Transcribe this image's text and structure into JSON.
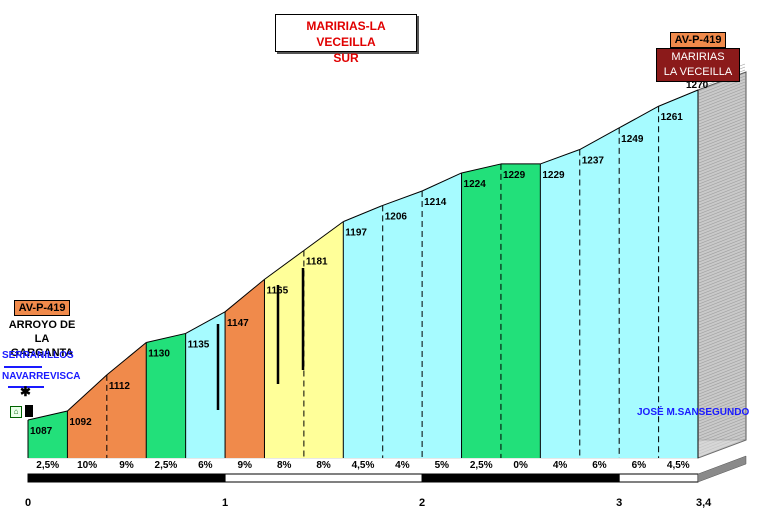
{
  "title_lines": [
    "MARIRIAS-LA VECEILLA",
    "SUR"
  ],
  "start": {
    "road": "AV-P-419",
    "name_lines": [
      "ARROYO DE LA",
      "GARGANTA"
    ],
    "directions": [
      "SERRANILLOS",
      "NAVARREVISCA"
    ]
  },
  "finish": {
    "road": "AV-P-419",
    "name_lines": [
      "MARIRIAS",
      "LA VECEILLA"
    ]
  },
  "author": "JOSÉ M.SANSEGUNDO",
  "colors": {
    "2.5": "#22e07a",
    "0": "#22e07a",
    "4": "#a6fbff",
    "4.5": "#a6fbff",
    "5": "#a6fbff",
    "6": "#a6fbff",
    "8": "#ffff99",
    "9": "#f08a4b",
    "10": "#f08a4b",
    "side": "#c9c9c9"
  },
  "chart_data": {
    "type": "area",
    "x_unit": "km",
    "xlim": [
      0,
      3.4
    ],
    "x_ticks": [
      0,
      1,
      2,
      3,
      3.4
    ],
    "x_tick_labels": [
      "0",
      "1",
      "2",
      "3",
      "3,4"
    ],
    "ylim": [
      1050,
      1290
    ],
    "points": [
      {
        "x": 0.0,
        "y": 1087
      },
      {
        "x": 0.2,
        "y": 1092
      },
      {
        "x": 0.4,
        "y": 1112
      },
      {
        "x": 0.6,
        "y": 1130
      },
      {
        "x": 0.8,
        "y": 1135
      },
      {
        "x": 1.0,
        "y": 1147
      },
      {
        "x": 1.2,
        "y": 1165
      },
      {
        "x": 1.4,
        "y": 1181
      },
      {
        "x": 1.6,
        "y": 1197
      },
      {
        "x": 1.8,
        "y": 1206
      },
      {
        "x": 2.0,
        "y": 1214
      },
      {
        "x": 2.2,
        "y": 1224
      },
      {
        "x": 2.4,
        "y": 1229
      },
      {
        "x": 2.6,
        "y": 1229
      },
      {
        "x": 2.8,
        "y": 1237
      },
      {
        "x": 3.0,
        "y": 1249
      },
      {
        "x": 3.2,
        "y": 1261
      },
      {
        "x": 3.4,
        "y": 1270
      }
    ],
    "gradients": [
      "2,5%",
      "10%",
      "9%",
      "2,5%",
      "6%",
      "9%",
      "8%",
      "8%",
      "4,5%",
      "4%",
      "5%",
      "2,5%",
      "0%",
      "4%",
      "6%",
      "6%",
      "4,5%"
    ],
    "gradient_values": [
      2.5,
      10,
      9,
      2.5,
      6,
      9,
      8,
      8,
      4.5,
      4,
      5,
      2.5,
      0,
      4,
      6,
      6,
      4.5
    ]
  }
}
